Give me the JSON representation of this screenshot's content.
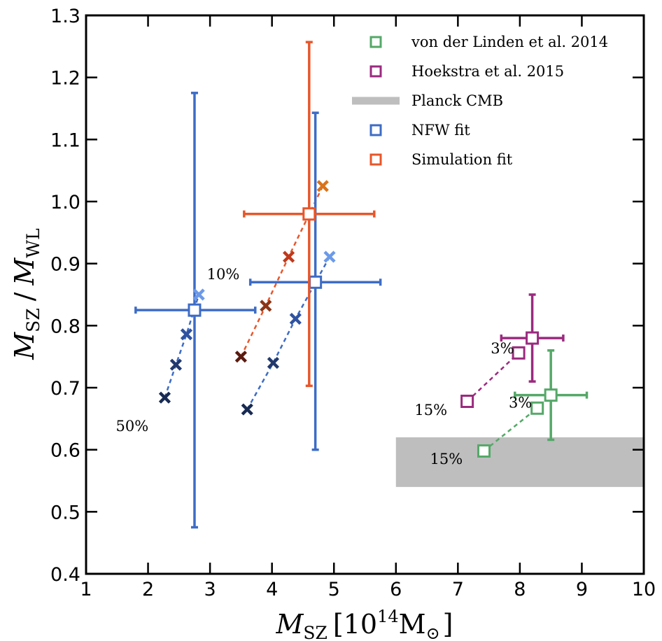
{
  "chart_data": {
    "type": "scatter",
    "xlim": [
      1,
      10
    ],
    "ylim": [
      0.4,
      1.3
    ],
    "x_ticks": [
      "1",
      "2",
      "3",
      "4",
      "5",
      "6",
      "7",
      "8",
      "9",
      "10"
    ],
    "y_ticks": [
      "0.4",
      "0.5",
      "0.6",
      "0.7",
      "0.8",
      "0.9",
      "1.0",
      "1.1",
      "1.2",
      "1.3"
    ],
    "xlabel": {
      "var": "M",
      "sub": "SZ",
      "open": "[10",
      "exp": "14",
      "unit": "M",
      "sun": "⊙",
      "close": "]"
    },
    "ylabel": {
      "var1": "M",
      "sub1": "SZ",
      "slash": "/",
      "var2": "M",
      "sub2": "WL"
    },
    "legend": [
      {
        "label": "von der Linden et al. 2014",
        "marker": "square",
        "color": "#55a868"
      },
      {
        "label": "Hoekstra et al. 2015",
        "marker": "square",
        "color": "#9b2a7f"
      },
      {
        "label": "Planck CMB",
        "marker": "band",
        "color": "#bebebe"
      },
      {
        "label": "NFW fit",
        "marker": "square",
        "color": "#3d6cc6"
      },
      {
        "label": "Simulation fit",
        "marker": "square",
        "color": "#e8562a"
      }
    ],
    "planck_band": {
      "x": [
        6.0,
        10.0
      ],
      "y": [
        0.54,
        0.62
      ],
      "color": "#bebebe"
    },
    "errorbars": [
      {
        "name": "NFW fit",
        "x": 2.75,
        "y": 0.825,
        "xerr": [
          0.95,
          0.98
        ],
        "yerr": [
          0.35,
          0.35
        ],
        "color": "#3d6cc6"
      },
      {
        "name": "NFW fit",
        "x": 4.7,
        "y": 0.87,
        "xerr": [
          1.05,
          1.05
        ],
        "yerr": [
          0.27,
          0.273
        ],
        "color": "#3d6cc6"
      },
      {
        "name": "Simulation fit",
        "x": 4.6,
        "y": 0.98,
        "xerr": [
          1.05,
          1.05
        ],
        "yerr": [
          0.277,
          0.277
        ],
        "color": "#e8562a"
      },
      {
        "name": "Hoekstra et al. 2015",
        "x": 8.2,
        "y": 0.78,
        "xerr": [
          0.5,
          0.5
        ],
        "yerr": [
          0.07,
          0.07
        ],
        "color": "#9b2a7f"
      },
      {
        "name": "von der Linden et al. 2014",
        "x": 8.5,
        "y": 0.688,
        "xerr": [
          0.58,
          0.58
        ],
        "yerr": [
          0.072,
          0.072
        ],
        "color": "#55a868"
      }
    ],
    "cross_series": [
      {
        "points": [
          {
            "x": 2.27,
            "y": 0.684,
            "color": "#172a52"
          },
          {
            "x": 2.45,
            "y": 0.737,
            "color": "#21396d"
          },
          {
            "x": 2.62,
            "y": 0.786,
            "color": "#2f52a0"
          },
          {
            "x": 2.82,
            "y": 0.85,
            "color": "#6c9ae8"
          }
        ],
        "line_color": "#3d6cc6"
      },
      {
        "points": [
          {
            "x": 3.6,
            "y": 0.665,
            "color": "#172a52"
          },
          {
            "x": 4.02,
            "y": 0.74,
            "color": "#21396d"
          },
          {
            "x": 4.38,
            "y": 0.811,
            "color": "#2f52a0"
          },
          {
            "x": 4.93,
            "y": 0.911,
            "color": "#6c9ae8"
          }
        ],
        "line_color": "#3d6cc6"
      },
      {
        "points": [
          {
            "x": 3.5,
            "y": 0.75,
            "color": "#5a1a0f"
          },
          {
            "x": 3.9,
            "y": 0.832,
            "color": "#8c3515"
          },
          {
            "x": 4.27,
            "y": 0.911,
            "color": "#c0391c"
          },
          {
            "x": 4.82,
            "y": 1.025,
            "color": "#d9731c"
          }
        ],
        "line_color": "#e8562a"
      }
    ],
    "square_series": [
      {
        "points": [
          {
            "x": 7.15,
            "y": 0.678
          },
          {
            "x": 7.98,
            "y": 0.756
          }
        ],
        "color": "#9b2a7f"
      },
      {
        "points": [
          {
            "x": 7.42,
            "y": 0.598
          },
          {
            "x": 8.28,
            "y": 0.667
          }
        ],
        "color": "#55a868"
      }
    ],
    "annotations": [
      {
        "text": "10%",
        "x": 2.95,
        "y": 0.875
      },
      {
        "text": "50%",
        "x": 1.48,
        "y": 0.63
      },
      {
        "text": "3%",
        "x": 7.53,
        "y": 0.755
      },
      {
        "text": "15%",
        "x": 6.3,
        "y": 0.656
      },
      {
        "text": "3%",
        "x": 7.82,
        "y": 0.668
      },
      {
        "text": "15%",
        "x": 6.55,
        "y": 0.577
      }
    ]
  }
}
